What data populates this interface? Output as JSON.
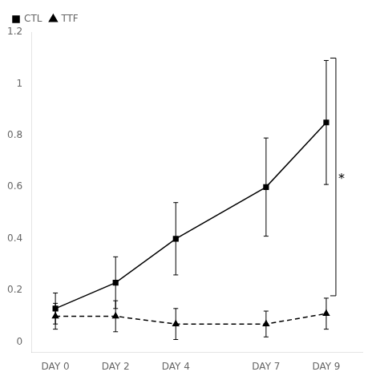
{
  "chart_data": {
    "type": "line",
    "x": [
      0,
      2,
      4,
      7,
      9
    ],
    "xlim": [
      -0.8,
      10.2
    ],
    "xticks": [
      {
        "value": 0,
        "label": "DAY 0"
      },
      {
        "value": 2,
        "label": "DAY 2"
      },
      {
        "value": 4,
        "label": "DAY 4"
      },
      {
        "value": 7,
        "label": "DAY 7"
      },
      {
        "value": 9,
        "label": "DAY 9"
      }
    ],
    "ylim": [
      -0.04,
      1.2
    ],
    "yticks": [
      0,
      0.2,
      0.4,
      0.6,
      0.8,
      1,
      1.2
    ],
    "grid": false,
    "legend": "upper left",
    "series": [
      {
        "name": "CTL",
        "color": "#000000",
        "marker": "square",
        "line_style": "solid",
        "values": [
          0.13,
          0.23,
          0.4,
          0.6,
          0.85
        ],
        "errors": [
          0.06,
          0.1,
          0.14,
          0.19,
          0.24
        ]
      },
      {
        "name": "TTF",
        "color": "#000000",
        "marker": "triangle",
        "line_style": "dashed",
        "values": [
          0.1,
          0.1,
          0.07,
          0.07,
          0.11
        ],
        "errors": [
          0.05,
          0.06,
          0.06,
          0.05,
          0.06
        ]
      }
    ],
    "annotations": [
      {
        "text": "*"
      }
    ]
  }
}
